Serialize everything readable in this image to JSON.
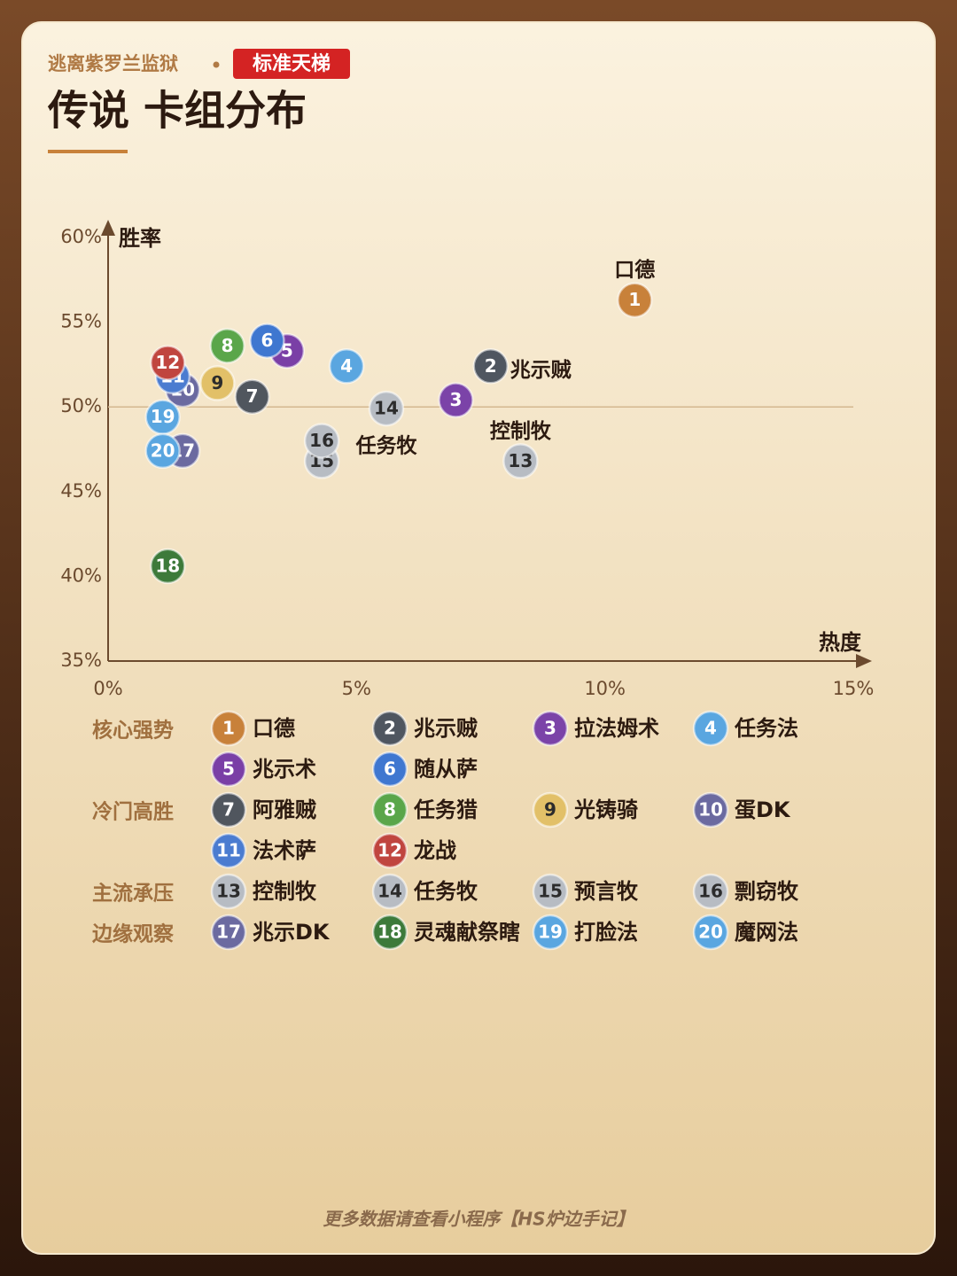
{
  "header": {
    "subtitle": "逃离紫罗兰监狱",
    "badge": "标准天梯",
    "title": "传说 卡组分布"
  },
  "chart_data": {
    "type": "scatter",
    "x_label": "热度",
    "y_label": "胜率",
    "xlim": [
      0,
      15
    ],
    "ylim": [
      35,
      60
    ],
    "xticks": [
      {
        "value": 0,
        "label": "0%"
      },
      {
        "value": 5,
        "label": "5%"
      },
      {
        "value": 10,
        "label": "10%"
      },
      {
        "value": 15,
        "label": "15%"
      }
    ],
    "yticks": [
      {
        "value": 35,
        "label": "35%"
      },
      {
        "value": 40,
        "label": "40%"
      },
      {
        "value": 45,
        "label": "45%"
      },
      {
        "value": 50,
        "label": "50%"
      },
      {
        "value": 55,
        "label": "55%"
      },
      {
        "value": 60,
        "label": "60%"
      }
    ],
    "reference_y": 50,
    "groups": [
      {
        "name": "核心强势",
        "points": [
          {
            "id": 1,
            "name": "口德",
            "x": 10.6,
            "y": 56.3,
            "color": "#c8813a",
            "callout": "口德",
            "callout_side": "top"
          },
          {
            "id": 2,
            "name": "兆示贼",
            "x": 7.7,
            "y": 52.4,
            "color": "#4f5660",
            "callout": "兆示贼",
            "callout_side": "right"
          },
          {
            "id": 3,
            "name": "拉法姆术",
            "x": 7.0,
            "y": 50.4,
            "color": "#7b43a8"
          },
          {
            "id": 4,
            "name": "任务法",
            "x": 4.8,
            "y": 52.4,
            "color": "#5aa6e0"
          },
          {
            "id": 5,
            "name": "兆示术",
            "x": 3.6,
            "y": 53.3,
            "color": "#7a3fa6"
          },
          {
            "id": 6,
            "name": "随从萨",
            "x": 3.2,
            "y": 53.9,
            "color": "#3f77d0"
          }
        ]
      },
      {
        "name": "冷门高胜",
        "points": [
          {
            "id": 7,
            "name": "阿雅贼",
            "x": 2.9,
            "y": 50.6,
            "color": "#50565e"
          },
          {
            "id": 8,
            "name": "任务猎",
            "x": 2.4,
            "y": 53.6,
            "color": "#5aa64a"
          },
          {
            "id": 9,
            "name": "光铸骑",
            "x": 2.2,
            "y": 51.4,
            "color": "#e2c068"
          },
          {
            "id": 10,
            "name": "蛋DK",
            "x": 1.5,
            "y": 51.0,
            "color": "#6b6aa0"
          },
          {
            "id": 11,
            "name": "法术萨",
            "x": 1.3,
            "y": 51.8,
            "color": "#4b7cd0"
          },
          {
            "id": 12,
            "name": "龙战",
            "x": 1.2,
            "y": 52.6,
            "color": "#c0453f"
          }
        ]
      },
      {
        "name": "主流承压",
        "points": [
          {
            "id": 13,
            "name": "控制牧",
            "x": 8.3,
            "y": 46.8,
            "color": "#b7bcc3",
            "callout": "控制牧",
            "callout_side": "top"
          },
          {
            "id": 14,
            "name": "任务牧",
            "x": 5.6,
            "y": 49.9,
            "color": "#b7bcc3",
            "callout": "任务牧",
            "callout_side": "bottom"
          },
          {
            "id": 15,
            "name": "预言牧",
            "x": 4.3,
            "y": 46.8,
            "color": "#b7bcc3"
          },
          {
            "id": 16,
            "name": "剽窃牧",
            "x": 4.3,
            "y": 48.0,
            "color": "#b7bcc3"
          }
        ]
      },
      {
        "name": "边缘观察",
        "points": [
          {
            "id": 17,
            "name": "兆示DK",
            "x": 1.5,
            "y": 47.4,
            "color": "#6b6aa0"
          },
          {
            "id": 18,
            "name": "灵魂献祭瞎",
            "x": 1.2,
            "y": 40.6,
            "color": "#3d7a3a"
          },
          {
            "id": 19,
            "name": "打脸法",
            "x": 1.1,
            "y": 49.4,
            "color": "#5aa6e0"
          },
          {
            "id": 20,
            "name": "魔网法",
            "x": 1.1,
            "y": 47.4,
            "color": "#5aa6e0"
          }
        ]
      }
    ]
  },
  "footer": "更多数据请查看小程序【HS炉边手记】"
}
